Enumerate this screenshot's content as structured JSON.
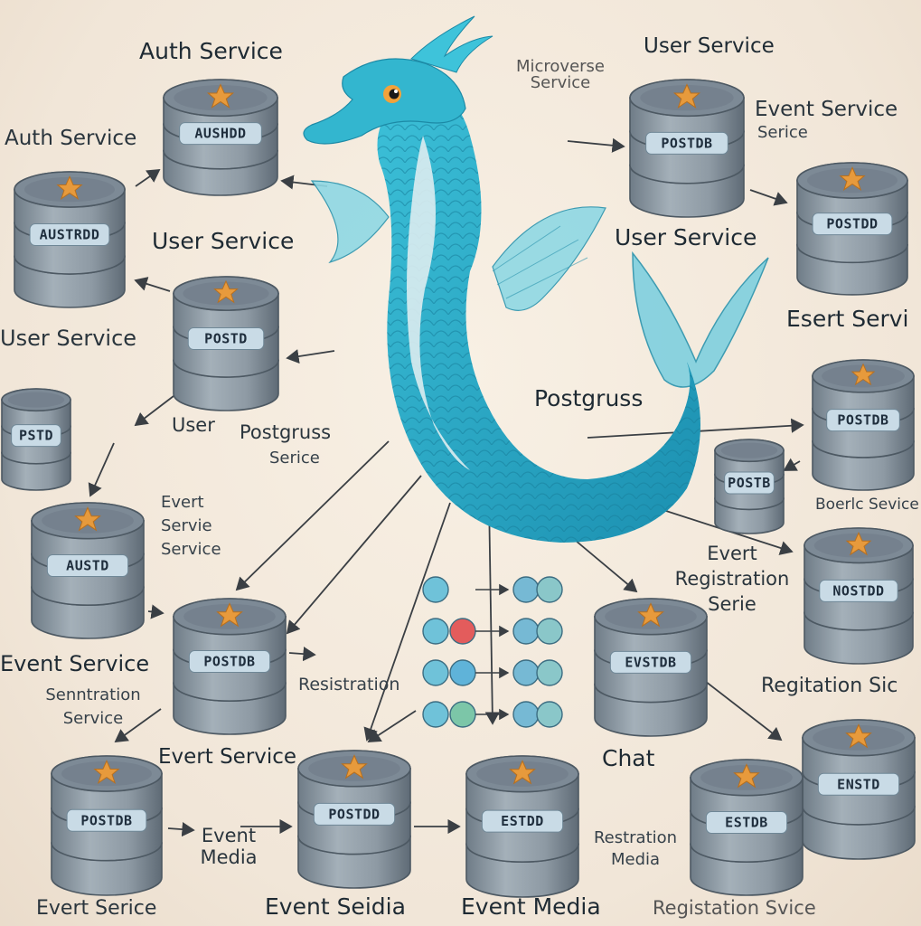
{
  "labels": {
    "auth_service_top": "Auth Service",
    "auth_service_left": "Auth Service",
    "user_service_top_right": "User Service",
    "microverse_service": "Microverse Service",
    "event_service_top_right": "Event Service",
    "serice": "Serice",
    "user_service_mid": "User Service",
    "user_service_right": "User Service",
    "user_service_left": "User Service",
    "esert_servi": "Esert Servi",
    "postgruss": "Postgruss",
    "user": "User",
    "postgruss_service": "Postgruss",
    "serice_sub": "Serice",
    "evert_servie_service": "Evert Servie Service",
    "boerlc_sevice": "Boerlc Sevice",
    "event_registration": "Evert Registration Serie",
    "registration": "Resistration",
    "event_service_left": "Event Service",
    "senntration_service": "Senntration Service",
    "regitation_svc": "Regitation Sic",
    "evert_service_bottom": "Evert Service",
    "chat": "Chat",
    "event_media_left": "Event Media",
    "restration_media": "Restration Media",
    "bottom_evert_serice": "Evert  Serice",
    "bottom_event_seidia": "Event Seidia",
    "bottom_event_media": "Event Media",
    "bottom_registation": "Registation Svice"
  },
  "databases": {
    "db_top_center": "AUSHDD",
    "db_top_left": "AUSTRDD",
    "db_user": "POSTD",
    "db_small_left": "PSTD",
    "db_left_mid": "AUSTD",
    "db_center_left": "POSTDB",
    "db_top_right": "POSTDB",
    "db_right_upper": "POSTDD",
    "db_right_mid": "POSTDB",
    "db_small_right": "POSTB",
    "db_right_lower": "NOSTDD",
    "db_center_right": "EVSTDB",
    "db_bottom_right": "ENSTD",
    "db_bottom_1": "POSTDB",
    "db_bottom_2": "POSTDD",
    "db_bottom_3": "ESTDD",
    "db_bottom_4": "ESTDB"
  },
  "colors": {
    "background": "#f4ebdf",
    "cylinder_body": "#8e9aa4",
    "cylinder_top": "#7d8a96",
    "label_panel": "#c9dbe6",
    "star": "#e79a3c",
    "seahorse": "#2ba9c4",
    "seahorse_belly": "#dcecef",
    "fin": "#7fd0df",
    "arrow": "#3a3f44"
  },
  "icons": [
    "seahorse-mascot",
    "starfish-icon",
    "connector-arrow",
    "node-circle"
  ]
}
